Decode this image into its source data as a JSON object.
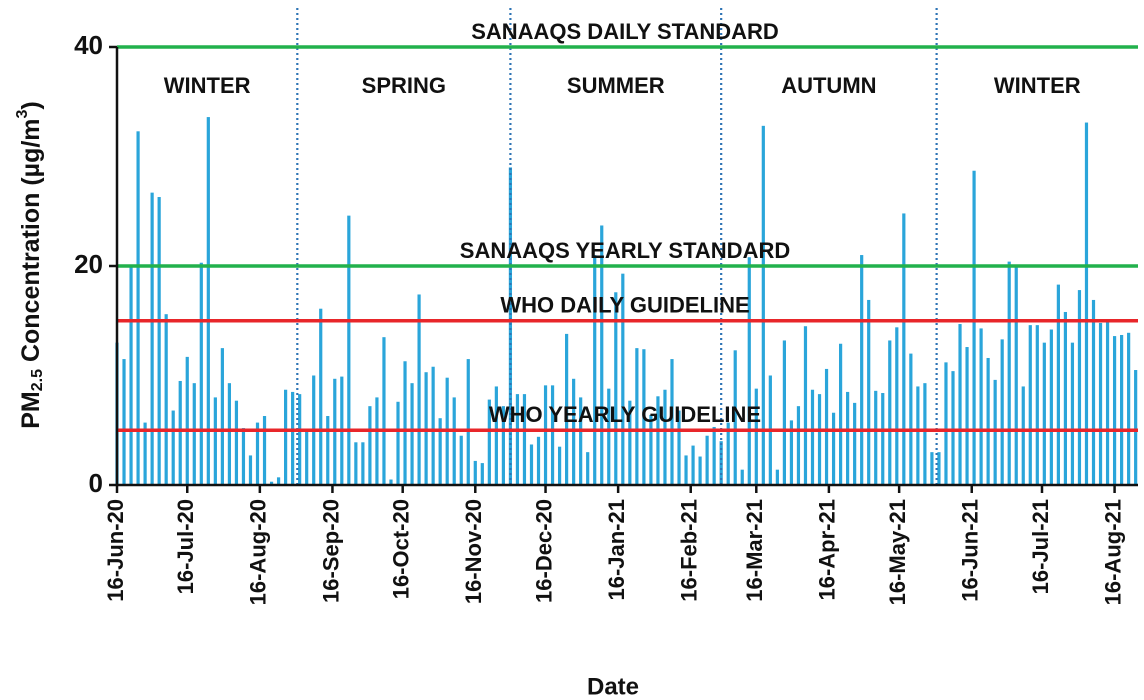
{
  "chart_data": {
    "type": "bar",
    "x_label": "Date",
    "y_label": {
      "main": "PM",
      "sub": "2.5",
      "rest": " Concentration (µg/m",
      "sup": "3",
      "end": ")"
    },
    "color": "#2aa5da",
    "ylim": [
      0,
      40
    ],
    "yticks": [
      0,
      20,
      40
    ],
    "xlim": [
      "2020-06-16",
      "2021-08-26"
    ],
    "xticks": [
      {
        "value": "2020-06-16",
        "label": "16-Jun-20"
      },
      {
        "value": "2020-07-16",
        "label": "16-Jul-20"
      },
      {
        "value": "2020-08-16",
        "label": "16-Aug-20"
      },
      {
        "value": "2020-09-16",
        "label": "16-Sep-20"
      },
      {
        "value": "2020-10-16",
        "label": "16-Oct-20"
      },
      {
        "value": "2020-11-16",
        "label": "16-Nov-20"
      },
      {
        "value": "2020-12-16",
        "label": "16-Dec-20"
      },
      {
        "value": "2021-01-16",
        "label": "16-Jan-21"
      },
      {
        "value": "2021-02-16",
        "label": "16-Feb-21"
      },
      {
        "value": "2021-03-16",
        "label": "16-Mar-21"
      },
      {
        "value": "2021-04-16",
        "label": "16-Apr-21"
      },
      {
        "value": "2021-05-16",
        "label": "16-May-21"
      },
      {
        "value": "2021-06-16",
        "label": "16-Jun-21"
      },
      {
        "value": "2021-07-16",
        "label": "16-Jul-21"
      },
      {
        "value": "2021-08-16",
        "label": "16-Aug-21"
      }
    ],
    "reference_lines": [
      {
        "value": 40,
        "label": "SANAAQS DAILY STANDARD",
        "color": "#22b14c"
      },
      {
        "value": 20,
        "label": "SANAAQS YEARLY STANDARD",
        "color": "#22b14c"
      },
      {
        "value": 15,
        "label": "WHO DAILY GUIDELINE",
        "color": "#e8262a"
      },
      {
        "value": 5,
        "label": "WHO YEARLY GUIDELINE",
        "color": "#e8262a"
      }
    ],
    "season_dividers": [
      "2020-09-01",
      "2020-12-01",
      "2021-03-01",
      "2021-06-01"
    ],
    "divider_color": "#2e74b5",
    "seasons": [
      "WINTER",
      "SPRING",
      "SUMMER",
      "AUTUMN",
      "WINTER"
    ],
    "x": [
      "2020-06-16",
      "2020-06-19",
      "2020-06-22",
      "2020-06-25",
      "2020-06-28",
      "2020-07-01",
      "2020-07-04",
      "2020-07-07",
      "2020-07-10",
      "2020-07-13",
      "2020-07-16",
      "2020-07-19",
      "2020-07-22",
      "2020-07-25",
      "2020-07-28",
      "2020-07-31",
      "2020-08-03",
      "2020-08-06",
      "2020-08-09",
      "2020-08-12",
      "2020-08-15",
      "2020-08-18",
      "2020-08-21",
      "2020-08-24",
      "2020-08-27",
      "2020-08-30",
      "2020-09-02",
      "2020-09-05",
      "2020-09-08",
      "2020-09-11",
      "2020-09-14",
      "2020-09-17",
      "2020-09-20",
      "2020-09-23",
      "2020-09-26",
      "2020-09-29",
      "2020-10-02",
      "2020-10-05",
      "2020-10-08",
      "2020-10-11",
      "2020-10-14",
      "2020-10-17",
      "2020-10-20",
      "2020-10-23",
      "2020-10-26",
      "2020-10-29",
      "2020-11-01",
      "2020-11-04",
      "2020-11-07",
      "2020-11-10",
      "2020-11-13",
      "2020-11-16",
      "2020-11-19",
      "2020-11-22",
      "2020-11-25",
      "2020-11-28",
      "2020-12-01",
      "2020-12-04",
      "2020-12-07",
      "2020-12-10",
      "2020-12-13",
      "2020-12-16",
      "2020-12-19",
      "2020-12-22",
      "2020-12-25",
      "2020-12-28",
      "2020-12-31",
      "2021-01-03",
      "2021-01-06",
      "2021-01-09",
      "2021-01-12",
      "2021-01-15",
      "2021-01-18",
      "2021-01-21",
      "2021-01-24",
      "2021-01-27",
      "2021-01-30",
      "2021-02-02",
      "2021-02-05",
      "2021-02-08",
      "2021-02-11",
      "2021-02-14",
      "2021-02-17",
      "2021-02-20",
      "2021-02-23",
      "2021-02-26",
      "2021-03-01",
      "2021-03-04",
      "2021-03-07",
      "2021-03-10",
      "2021-03-13",
      "2021-03-16",
      "2021-03-19",
      "2021-03-22",
      "2021-03-25",
      "2021-03-28",
      "2021-03-31",
      "2021-04-03",
      "2021-04-06",
      "2021-04-09",
      "2021-04-12",
      "2021-04-15",
      "2021-04-18",
      "2021-04-21",
      "2021-04-24",
      "2021-04-27",
      "2021-04-30",
      "2021-05-03",
      "2021-05-06",
      "2021-05-09",
      "2021-05-12",
      "2021-05-15",
      "2021-05-18",
      "2021-05-21",
      "2021-05-24",
      "2021-05-27",
      "2021-05-30",
      "2021-06-02",
      "2021-06-05",
      "2021-06-08",
      "2021-06-11",
      "2021-06-14",
      "2021-06-17",
      "2021-06-20",
      "2021-06-23",
      "2021-06-26",
      "2021-06-29",
      "2021-07-02",
      "2021-07-05",
      "2021-07-08",
      "2021-07-11",
      "2021-07-14",
      "2021-07-17",
      "2021-07-20",
      "2021-07-23",
      "2021-07-26",
      "2021-07-29",
      "2021-08-01",
      "2021-08-04",
      "2021-08-07",
      "2021-08-10",
      "2021-08-13",
      "2021-08-16",
      "2021-08-19",
      "2021-08-22",
      "2021-08-25"
    ],
    "values": [
      13,
      11.5,
      20,
      32.3,
      5.7,
      26.7,
      26.3,
      15.6,
      6.8,
      9.5,
      11.7,
      9.3,
      20.3,
      33.6,
      8,
      12.5,
      9.3,
      7.7,
      5.2,
      2.7,
      5.7,
      6.3,
      0.3,
      0.7,
      8.7,
      8.5,
      8.3,
      5.1,
      10,
      16.1,
      6.3,
      9.7,
      9.9,
      24.6,
      3.9,
      3.9,
      7.2,
      8,
      13.5,
      0.5,
      7.6,
      11.3,
      9.3,
      17.4,
      10.3,
      10.8,
      6.1,
      9.8,
      8,
      4.5,
      11.5,
      2.2,
      2,
      7.8,
      9,
      7.2,
      29,
      8.3,
      8.3,
      3.7,
      4.4,
      9.1,
      9.1,
      3.5,
      13.8,
      9.7,
      8,
      3,
      21,
      23.7,
      8.8,
      17.6,
      19.3,
      7.7,
      12.5,
      12.4,
      6.4,
      8.1,
      8.7,
      11.5,
      6.8,
      2.7,
      3.6,
      2.6,
      4.5,
      5.3,
      4,
      5.7,
      12.3,
      1.4,
      20.8,
      8.8,
      32.8,
      10,
      1.4,
      13.2,
      5.9,
      7.2,
      14.5,
      8.7,
      8.3,
      10.6,
      6.6,
      12.9,
      8.5,
      7.5,
      21,
      16.9,
      8.6,
      8.4,
      13.2,
      14.4,
      24.8,
      12,
      9,
      9.3,
      3,
      3,
      11.2,
      10.4,
      14.7,
      12.6,
      28.7,
      14.3,
      11.6,
      9.6,
      13.3,
      20.4,
      19.9,
      9,
      14.6,
      14.6,
      13,
      14.2,
      18.3,
      15.8,
      13,
      17.8,
      33.1,
      16.9,
      14.8,
      14.9,
      13.6,
      13.7,
      13.9,
      10.5
    ]
  }
}
